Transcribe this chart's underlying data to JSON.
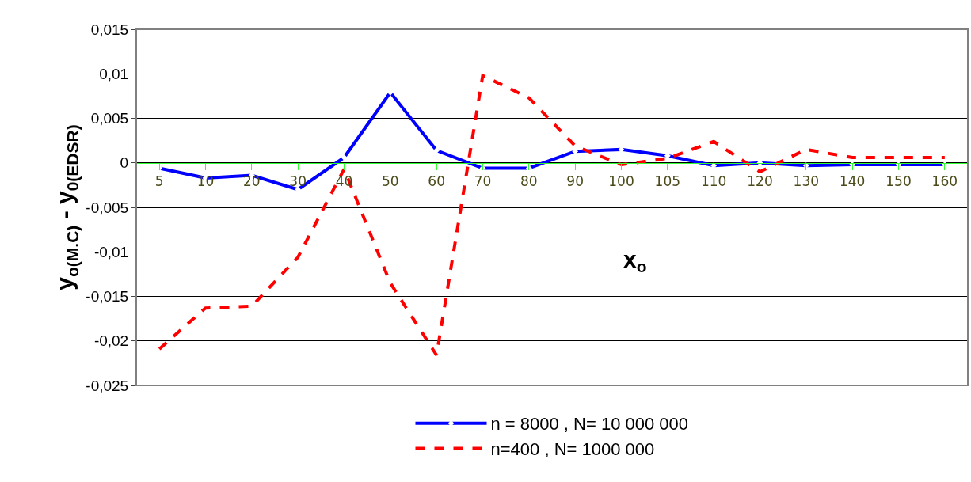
{
  "chart_data": {
    "type": "line",
    "xlabel": "x$_{o}$",
    "ylabel": "y$_{o(M.C)}$ - y$_{0(EDSR)}$",
    "categories": [
      "5",
      "10",
      "20",
      "30",
      "40",
      "50",
      "60",
      "70",
      "80",
      "90",
      "100",
      "105",
      "110",
      "120",
      "130",
      "140",
      "150",
      "160"
    ],
    "series": [
      {
        "name": "n = 8000 , N= 10 000 000",
        "color": "#0000ff",
        "marker": "diamond",
        "line_style": "solid",
        "values": [
          -0.0006,
          -0.0017,
          -0.0014,
          -0.003,
          0.0006,
          0.0079,
          0.0014,
          -0.0006,
          -0.0006,
          0.0013,
          0.0015,
          0.0008,
          -0.0003,
          0.0,
          -0.0003,
          -0.0002,
          -0.0002,
          -0.0002
        ]
      },
      {
        "name": "n=400 , N= 1000 000",
        "color": "#ff0000",
        "marker": "none",
        "line_style": "dashed",
        "values": [
          -0.0209,
          -0.0163,
          -0.0161,
          -0.0106,
          -0.0007,
          -0.0135,
          -0.0216,
          0.0098,
          0.0073,
          0.0019,
          -0.0002,
          0.0005,
          0.0024,
          -0.001,
          0.0015,
          0.0006,
          0.0006,
          0.0006
        ]
      }
    ],
    "ylim": [
      -0.025,
      0.015
    ],
    "yticks": [
      {
        "value": -0.025,
        "label": "-0,025"
      },
      {
        "value": -0.02,
        "label": "-0,02"
      },
      {
        "value": -0.015,
        "label": "-0,015"
      },
      {
        "value": -0.01,
        "label": "-0,01"
      },
      {
        "value": -0.005,
        "label": "-0,005"
      },
      {
        "value": 0,
        "label": "0"
      },
      {
        "value": 0.005,
        "label": "0,005"
      },
      {
        "value": 0.01,
        "label": "0,01"
      },
      {
        "value": 0.015,
        "label": "0,015"
      }
    ],
    "grid": "y",
    "legend": "bottom"
  }
}
